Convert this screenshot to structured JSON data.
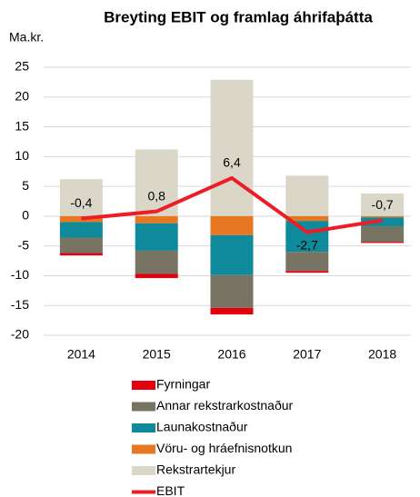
{
  "chart_data": {
    "type": "bar",
    "stacked": true,
    "title": "Breyting EBIT og framlag áhrifaþátta",
    "y_label": "Ma.kr.",
    "categories": [
      "2014",
      "2015",
      "2016",
      "2017",
      "2018"
    ],
    "series": [
      {
        "name": "Fyrningar",
        "color": "#e3000f",
        "values": [
          -0.4,
          -0.7,
          -1.1,
          -0.3,
          -0.2
        ]
      },
      {
        "name": "Annar rekstrarkostnaður",
        "color": "#787464",
        "values": [
          -2.6,
          -3.9,
          -5.5,
          -3.2,
          -2.6
        ]
      },
      {
        "name": "Launakostnaður",
        "color": "#0e8a9a",
        "values": [
          -2.6,
          -4.6,
          -6.7,
          -5.2,
          -1.5
        ]
      },
      {
        "name": "Vöru- og hráefnisnotkun",
        "color": "#e87722",
        "values": [
          -1.0,
          -1.2,
          -3.2,
          -0.8,
          -0.2
        ]
      },
      {
        "name": "Rekstrartekjur",
        "color": "#dad7c9",
        "values": [
          6.2,
          11.2,
          22.9,
          6.8,
          3.8
        ]
      },
      {
        "name": "EBIT",
        "type": "line",
        "color": "#ee1c25",
        "values": [
          -0.4,
          0.8,
          6.4,
          -2.7,
          -0.7
        ],
        "value_labels": [
          "-0,4",
          "0,8",
          "6,4",
          "-2,7",
          "-0,7"
        ]
      }
    ],
    "ylim": [
      -20,
      25
    ],
    "yticks": [
      -20,
      -15,
      -10,
      -5,
      0,
      5,
      10,
      15,
      20,
      25
    ],
    "grid": true
  }
}
